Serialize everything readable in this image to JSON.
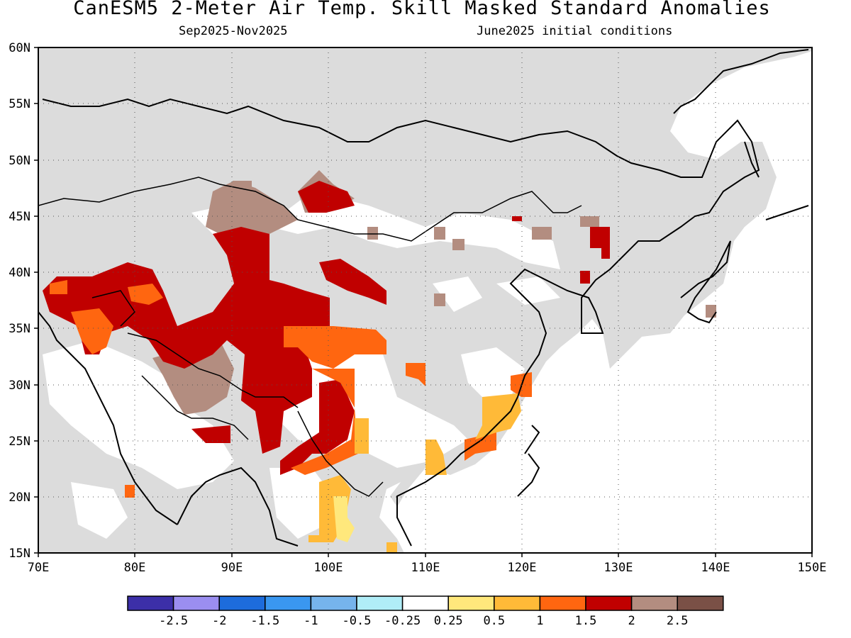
{
  "title": "CanESM5 2-Meter Air Temp. Skill Masked Standard Anomalies",
  "subtitle_left": "Sep2025-Nov2025",
  "subtitle_right": "June2025 initial conditions",
  "map": {
    "lon_range": [
      70,
      150
    ],
    "lat_range": [
      15,
      60
    ],
    "lon_ticks": [
      "70E",
      "80E",
      "90E",
      "100E",
      "110E",
      "120E",
      "130E",
      "140E",
      "150E"
    ],
    "lat_ticks": [
      "60N",
      "55N",
      "50N",
      "45N",
      "40N",
      "35N",
      "30N",
      "25N",
      "20N",
      "15N"
    ],
    "land_color": "#dcdcdc",
    "ocean_color": "#ffffff",
    "gridlines": "dotted"
  },
  "colorbar": {
    "colors": [
      "#3c2fa8",
      "#9b8ef0",
      "#1d6cdc",
      "#3a97f0",
      "#76b4ec",
      "#b0edf7",
      "#ffffff",
      "#ffe87c",
      "#ffba38",
      "#ff6610",
      "#c00000",
      "#b38d80",
      "#7a5046"
    ],
    "labels": [
      "-2.5",
      "-2",
      "-1.5",
      "-1",
      "-0.5",
      "-0.25",
      "0.25",
      "0.5",
      "1",
      "1.5",
      "2",
      "2.5"
    ]
  },
  "anomaly_regions": [
    {
      "name": "central-asia-tibet-positive",
      "category": "2",
      "color": "#c00000"
    },
    {
      "name": "tibet-margin-2.5",
      "category": "2.5",
      "color": "#b38d80"
    },
    {
      "name": "pamir-karakoram-1.5",
      "category": "1.5",
      "color": "#ff6610"
    },
    {
      "name": "tibet-east-1.5",
      "category": "1.5",
      "color": "#ff6610"
    },
    {
      "name": "yunnan-laos-1",
      "category": "1",
      "color": "#ffba38"
    },
    {
      "name": "south-china-coast-1",
      "category": "1",
      "color": "#ffba38"
    },
    {
      "name": "korea-manchuria-2",
      "category": "2",
      "color": "#c00000"
    },
    {
      "name": "japan-2.5",
      "category": "2.5",
      "color": "#b38d80"
    }
  ]
}
